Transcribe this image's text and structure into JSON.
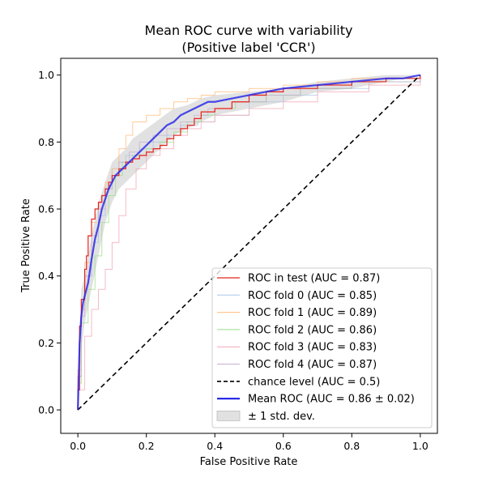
{
  "chart_data": {
    "type": "line",
    "title": "Mean ROC curve with variability",
    "subtitle": "(Positive label 'CCR')",
    "xlabel": "False Positive Rate",
    "ylabel": "True Positive Rate",
    "xlim": [
      -0.05,
      1.05
    ],
    "ylim": [
      -0.07,
      1.05
    ],
    "xticks": [
      0.0,
      0.2,
      0.4,
      0.6,
      0.8,
      1.0
    ],
    "yticks": [
      0.0,
      0.2,
      0.4,
      0.6,
      0.8,
      1.0
    ],
    "xtick_labels": [
      "0.0",
      "0.2",
      "0.4",
      "0.6",
      "0.8",
      "1.0"
    ],
    "ytick_labels": [
      "0.0",
      "0.2",
      "0.4",
      "0.6",
      "0.8",
      "1.0"
    ],
    "grid": false,
    "legend_position": "lower-right",
    "colors": {
      "test": "#e8231c",
      "fold0": "#aec7e8",
      "fold1": "#ffbb78",
      "fold2": "#98df8a",
      "fold3": "#f2a6b4",
      "fold4": "#c5b0d5",
      "chance": "#000000",
      "mean": "#2a2ae8",
      "band": "#c8c8c8"
    },
    "series": [
      {
        "key": "test",
        "name": "ROC in test (AUC = 0.87)",
        "style": "step",
        "x": [
          0.0,
          0.0,
          0.005,
          0.01,
          0.02,
          0.025,
          0.03,
          0.04,
          0.05,
          0.06,
          0.07,
          0.08,
          0.09,
          0.1,
          0.12,
          0.14,
          0.16,
          0.18,
          0.2,
          0.22,
          0.24,
          0.26,
          0.28,
          0.3,
          0.32,
          0.34,
          0.36,
          0.4,
          0.45,
          0.5,
          0.55,
          0.6,
          0.7,
          0.8,
          0.9,
          1.0
        ],
        "y": [
          0.0,
          0.06,
          0.25,
          0.33,
          0.42,
          0.46,
          0.52,
          0.57,
          0.6,
          0.62,
          0.64,
          0.66,
          0.68,
          0.7,
          0.72,
          0.74,
          0.75,
          0.76,
          0.77,
          0.78,
          0.79,
          0.81,
          0.82,
          0.84,
          0.85,
          0.87,
          0.89,
          0.9,
          0.92,
          0.94,
          0.95,
          0.96,
          0.97,
          0.98,
          0.99,
          1.0
        ]
      },
      {
        "key": "fold0",
        "name": "ROC fold 0 (AUC = 0.85)",
        "style": "step",
        "x": [
          0.0,
          0.0,
          0.01,
          0.02,
          0.04,
          0.06,
          0.08,
          0.1,
          0.12,
          0.14,
          0.18,
          0.22,
          0.26,
          0.3,
          0.35,
          0.4,
          0.5,
          0.6,
          0.7,
          0.85,
          1.0
        ],
        "y": [
          0.0,
          0.1,
          0.3,
          0.4,
          0.5,
          0.58,
          0.66,
          0.72,
          0.74,
          0.76,
          0.78,
          0.8,
          0.82,
          0.85,
          0.86,
          0.88,
          0.92,
          0.94,
          0.96,
          0.98,
          1.0
        ]
      },
      {
        "key": "fold1",
        "name": "ROC fold 1 (AUC = 0.89)",
        "style": "step",
        "x": [
          0.0,
          0.0,
          0.01,
          0.02,
          0.04,
          0.06,
          0.08,
          0.1,
          0.12,
          0.14,
          0.16,
          0.2,
          0.24,
          0.28,
          0.32,
          0.36,
          0.4,
          0.5,
          0.6,
          0.7,
          0.8,
          1.0
        ],
        "y": [
          0.0,
          0.12,
          0.3,
          0.44,
          0.56,
          0.62,
          0.68,
          0.72,
          0.78,
          0.82,
          0.86,
          0.88,
          0.9,
          0.92,
          0.93,
          0.94,
          0.95,
          0.96,
          0.97,
          0.98,
          0.99,
          1.0
        ]
      },
      {
        "key": "fold2",
        "name": "ROC fold 2 (AUC = 0.86)",
        "style": "step",
        "x": [
          0.0,
          0.0,
          0.01,
          0.03,
          0.05,
          0.07,
          0.09,
          0.11,
          0.13,
          0.16,
          0.2,
          0.24,
          0.28,
          0.32,
          0.36,
          0.4,
          0.46,
          0.55,
          0.65,
          0.8,
          1.0
        ],
        "y": [
          0.0,
          0.08,
          0.26,
          0.36,
          0.46,
          0.56,
          0.64,
          0.7,
          0.74,
          0.76,
          0.78,
          0.8,
          0.83,
          0.86,
          0.88,
          0.9,
          0.92,
          0.94,
          0.96,
          0.98,
          1.0
        ]
      },
      {
        "key": "fold3",
        "name": "ROC fold 3 (AUC = 0.83)",
        "style": "step",
        "x": [
          0.0,
          0.0,
          0.02,
          0.04,
          0.06,
          0.08,
          0.1,
          0.12,
          0.14,
          0.17,
          0.2,
          0.24,
          0.28,
          0.32,
          0.36,
          0.4,
          0.5,
          0.6,
          0.7,
          0.85,
          1.0
        ],
        "y": [
          0.0,
          0.06,
          0.22,
          0.3,
          0.36,
          0.42,
          0.5,
          0.58,
          0.66,
          0.72,
          0.76,
          0.78,
          0.82,
          0.84,
          0.86,
          0.88,
          0.9,
          0.92,
          0.95,
          0.97,
          1.0
        ]
      },
      {
        "key": "fold4",
        "name": "ROC fold 4 (AUC = 0.87)",
        "style": "step",
        "x": [
          0.0,
          0.0,
          0.01,
          0.02,
          0.04,
          0.06,
          0.08,
          0.1,
          0.12,
          0.15,
          0.18,
          0.22,
          0.26,
          0.3,
          0.34,
          0.38,
          0.45,
          0.55,
          0.65,
          0.8,
          1.0
        ],
        "y": [
          0.0,
          0.1,
          0.28,
          0.4,
          0.52,
          0.6,
          0.66,
          0.7,
          0.74,
          0.77,
          0.8,
          0.82,
          0.84,
          0.86,
          0.88,
          0.9,
          0.92,
          0.94,
          0.96,
          0.98,
          1.0
        ]
      },
      {
        "key": "chance",
        "name": "chance level (AUC = 0.5)",
        "style": "dashed",
        "x": [
          0.0,
          1.0
        ],
        "y": [
          0.0,
          1.0
        ]
      },
      {
        "key": "mean",
        "name": "Mean ROC (AUC = 0.86 ± 0.02)",
        "style": "line",
        "x": [
          0.0,
          0.005,
          0.01,
          0.015,
          0.02,
          0.03,
          0.04,
          0.05,
          0.06,
          0.07,
          0.08,
          0.09,
          0.1,
          0.11,
          0.12,
          0.13,
          0.14,
          0.15,
          0.16,
          0.18,
          0.2,
          0.22,
          0.24,
          0.26,
          0.28,
          0.3,
          0.32,
          0.34,
          0.36,
          0.38,
          0.4,
          0.45,
          0.5,
          0.55,
          0.6,
          0.7,
          0.8,
          0.9,
          0.95,
          1.0
        ],
        "y": [
          0.0,
          0.2,
          0.28,
          0.32,
          0.34,
          0.38,
          0.45,
          0.51,
          0.55,
          0.6,
          0.63,
          0.66,
          0.68,
          0.7,
          0.71,
          0.72,
          0.73,
          0.74,
          0.75,
          0.77,
          0.79,
          0.81,
          0.83,
          0.85,
          0.86,
          0.88,
          0.89,
          0.9,
          0.91,
          0.92,
          0.92,
          0.93,
          0.94,
          0.95,
          0.96,
          0.97,
          0.98,
          0.99,
          0.99,
          1.0
        ]
      }
    ],
    "std_band": {
      "name": "± 1 std. dev.",
      "x": [
        0.0,
        0.01,
        0.02,
        0.04,
        0.06,
        0.08,
        0.1,
        0.12,
        0.14,
        0.16,
        0.2,
        0.24,
        0.28,
        0.32,
        0.36,
        0.4,
        0.5,
        0.6,
        0.7,
        0.8,
        0.9,
        1.0
      ],
      "lower": [
        0.0,
        0.18,
        0.26,
        0.36,
        0.46,
        0.56,
        0.62,
        0.66,
        0.68,
        0.7,
        0.74,
        0.78,
        0.82,
        0.84,
        0.86,
        0.88,
        0.9,
        0.92,
        0.95,
        0.96,
        0.98,
        1.0
      ],
      "upper": [
        0.0,
        0.36,
        0.4,
        0.52,
        0.62,
        0.68,
        0.74,
        0.76,
        0.78,
        0.81,
        0.84,
        0.87,
        0.9,
        0.91,
        0.93,
        0.94,
        0.95,
        0.96,
        0.98,
        0.99,
        1.0,
        1.0
      ]
    },
    "legend": [
      {
        "key": "test",
        "label": "ROC in test (AUC = 0.87)",
        "kind": "line"
      },
      {
        "key": "fold0",
        "label": "ROC fold 0 (AUC = 0.85)",
        "kind": "line"
      },
      {
        "key": "fold1",
        "label": "ROC fold 1 (AUC = 0.89)",
        "kind": "line"
      },
      {
        "key": "fold2",
        "label": "ROC fold 2 (AUC = 0.86)",
        "kind": "line"
      },
      {
        "key": "fold3",
        "label": "ROC fold 3 (AUC = 0.83)",
        "kind": "line"
      },
      {
        "key": "fold4",
        "label": "ROC fold 4 (AUC = 0.87)",
        "kind": "line"
      },
      {
        "key": "chance",
        "label": "chance level (AUC = 0.5)",
        "kind": "dashed"
      },
      {
        "key": "mean",
        "label": "Mean ROC (AUC = 0.86 ± 0.02)",
        "kind": "thick"
      },
      {
        "key": "band",
        "label": "± 1 std. dev.",
        "kind": "patch"
      }
    ]
  }
}
